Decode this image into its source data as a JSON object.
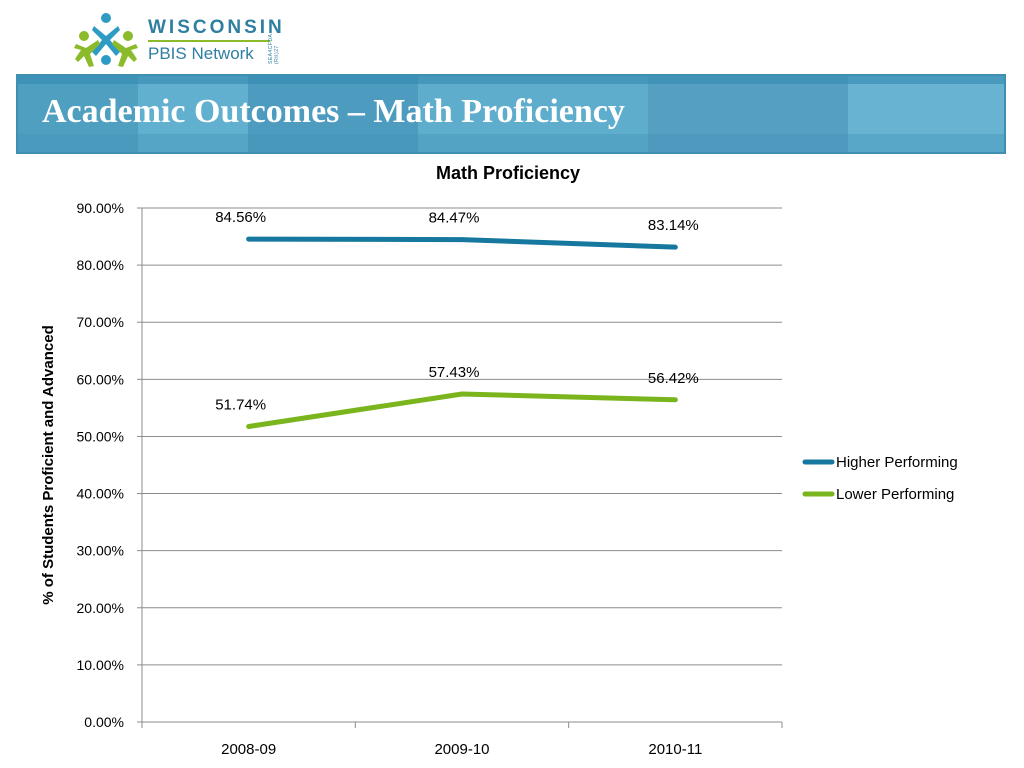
{
  "logo": {
    "name_top": "WISCONSIN",
    "name_bottom": "PBIS Network",
    "side_text": "SEA4CFDA (RtI)27",
    "icon": "pbis-network-figures-icon"
  },
  "slide": {
    "title": "Academic Outcomes – Math Proficiency"
  },
  "colors": {
    "banner": "#5aa9c9",
    "banner_border": "#3e8fb2",
    "higher": "#16789e",
    "lower": "#7ab51d",
    "grid": "#8c8c8c",
    "logo_blue": "#2e7fa0",
    "logo_green": "#8bbb2a"
  },
  "chart_data": {
    "type": "line",
    "title": "Math Proficiency",
    "ylabel": "% of Students Proficient and Advanced",
    "xlabel": "",
    "categories": [
      "2008-09",
      "2009-10",
      "2010-11"
    ],
    "ylim": [
      0,
      90
    ],
    "yticks": [
      0,
      10,
      20,
      30,
      40,
      50,
      60,
      70,
      80,
      90
    ],
    "ytick_labels": [
      "0.00%",
      "10.00%",
      "20.00%",
      "30.00%",
      "40.00%",
      "50.00%",
      "60.00%",
      "70.00%",
      "80.00%",
      "90.00%"
    ],
    "grid": true,
    "legend_position": "right",
    "series": [
      {
        "name": "Higher Performing",
        "values": [
          84.56,
          84.47,
          83.14
        ],
        "labels": [
          "84.56%",
          "84.47%",
          "83.14%"
        ],
        "color": "#16789e"
      },
      {
        "name": "Lower Performing",
        "values": [
          51.74,
          57.43,
          56.42
        ],
        "labels": [
          "51.74%",
          "57.43%",
          "56.42%"
        ],
        "color": "#7ab51d"
      }
    ]
  }
}
